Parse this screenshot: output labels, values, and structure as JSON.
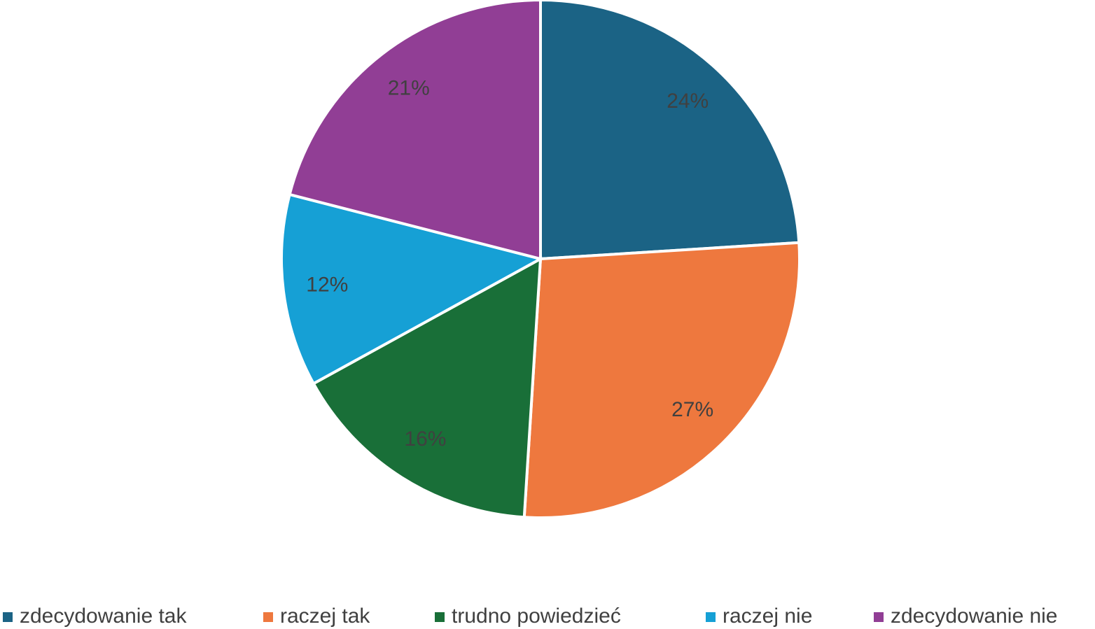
{
  "chart_data": {
    "type": "pie",
    "categories": [
      "zdecydowanie tak",
      "raczej tak",
      "trudno powiedzieć",
      "raczej nie",
      "zdecydowanie nie"
    ],
    "values": [
      24,
      27,
      16,
      12,
      21
    ],
    "value_labels": [
      "24%",
      "27%",
      "16%",
      "12%",
      "21%"
    ],
    "colors": [
      "#1b6385",
      "#ee783e",
      "#196f38",
      "#16a0d5",
      "#913e95"
    ],
    "legend": "bottom"
  }
}
